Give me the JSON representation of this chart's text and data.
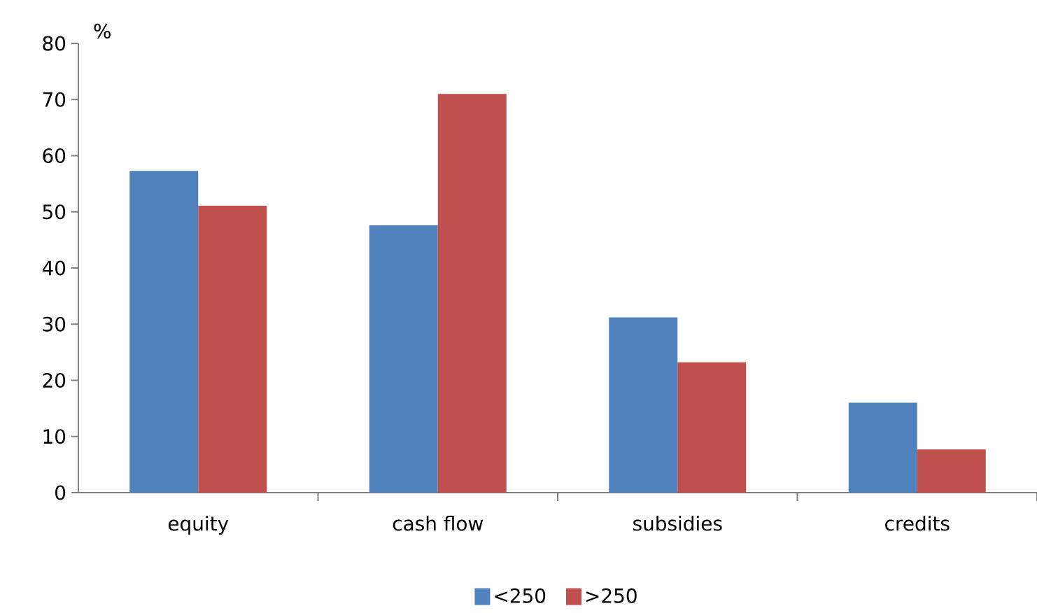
{
  "chart_data": {
    "type": "bar",
    "ylabel": "%",
    "categories": [
      "equity",
      "cash flow",
      "subsidies",
      "credits"
    ],
    "series": [
      {
        "name": "<250",
        "color": "#4f81bd",
        "values": [
          57.3,
          47.6,
          31.2,
          16.0
        ]
      },
      {
        "name": ">250",
        "color": "#c0504d",
        "values": [
          51.1,
          71.0,
          23.2,
          7.7
        ]
      }
    ],
    "ylim": [
      0,
      80
    ],
    "yticks": [
      0,
      10,
      20,
      30,
      40,
      50,
      60,
      70,
      80
    ],
    "legend": "bottom"
  }
}
